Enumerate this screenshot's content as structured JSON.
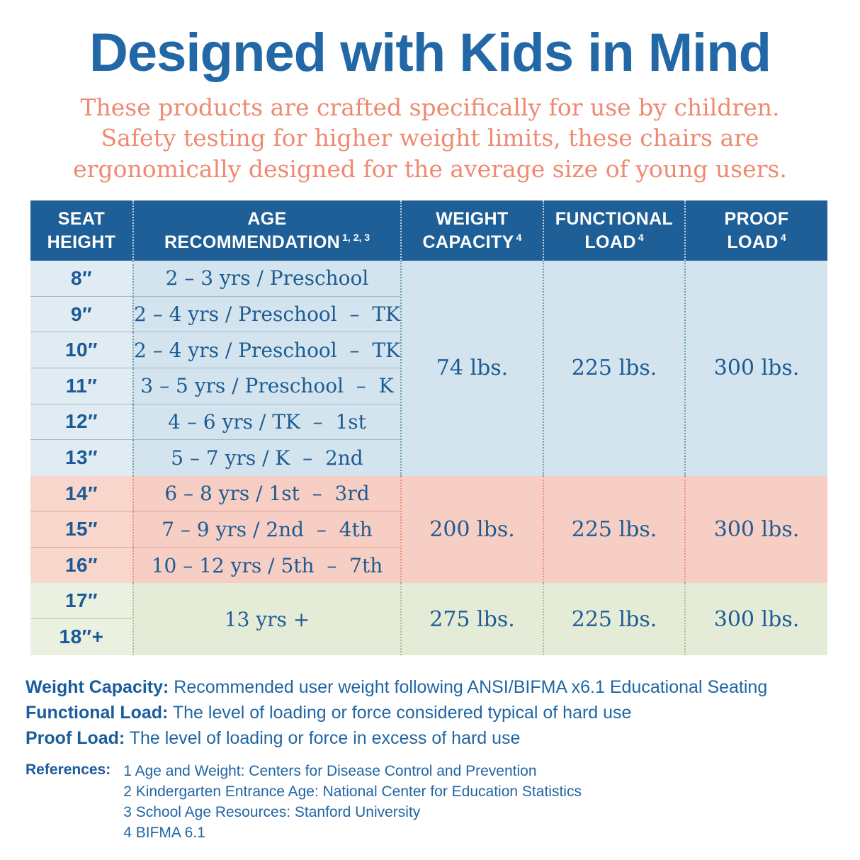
{
  "title": "Designed with Kids in Mind",
  "subtitle": {
    "line1": "These products are crafted specifically for use by children.",
    "line2": "Safety testing for higher weight limits, these chairs are",
    "line3": "ergonomically designed for the average size of young users."
  },
  "colors": {
    "title_blue": "#2268a6",
    "coral": "#ef8a72",
    "header_bg": "#1f5f97",
    "body_text_blue": "#1d5c92",
    "section_blue": "#d3e4ee",
    "section_pink": "#f7cec4",
    "section_green": "#e4ecd8"
  },
  "table": {
    "headers": [
      {
        "line1": "SEAT",
        "line2": "HEIGHT",
        "sup": ""
      },
      {
        "line1": "AGE",
        "line2": "RECOMMENDATION",
        "sup": "1, 2, 3"
      },
      {
        "line1": "WEIGHT",
        "line2": "CAPACITY",
        "sup": "4"
      },
      {
        "line1": "FUNCTIONAL",
        "line2": "LOAD",
        "sup": "4"
      },
      {
        "line1": "PROOF",
        "line2": "LOAD",
        "sup": "4"
      }
    ],
    "sections": [
      {
        "name": "blue",
        "rows": [
          {
            "height": "8″",
            "age": "2 – 3 yrs / Preschool"
          },
          {
            "height": "9″",
            "age": "2 – 4 yrs / Preschool  –  TK"
          },
          {
            "height": "10″",
            "age": "2 – 4 yrs / Preschool  –  TK"
          },
          {
            "height": "11″",
            "age": "3 – 5 yrs / Preschool  –  K"
          },
          {
            "height": "12″",
            "age": "4 – 6 yrs / TK  –  1st"
          },
          {
            "height": "13″",
            "age": "5 – 7 yrs / K  –  2nd"
          }
        ],
        "weight_capacity": "74 lbs.",
        "functional_load": "225 lbs.",
        "proof_load": "300 lbs."
      },
      {
        "name": "pink",
        "rows": [
          {
            "height": "14″",
            "age": "6 – 8 yrs / 1st  –  3rd"
          },
          {
            "height": "15″",
            "age": "7 – 9 yrs / 2nd  –  4th"
          },
          {
            "height": "16″",
            "age": "10 – 12 yrs / 5th  –  7th"
          }
        ],
        "weight_capacity": "200 lbs.",
        "functional_load": "225 lbs.",
        "proof_load": "300 lbs."
      },
      {
        "name": "green",
        "rows": [
          {
            "height": "17″"
          },
          {
            "height": "18″+"
          }
        ],
        "age": "13 yrs +",
        "weight_capacity": "275 lbs.",
        "functional_load": "225 lbs.",
        "proof_load": "300 lbs."
      }
    ]
  },
  "definitions": [
    {
      "term": "Weight Capacity:",
      "text": " Recommended user weight following ANSI/BIFMA x6.1 Educational Seating"
    },
    {
      "term": "Functional Load:",
      "text": " The level of loading or force considered typical of hard use"
    },
    {
      "term": "Proof Load:",
      "text": " The level of loading or force in excess of hard use"
    }
  ],
  "references": {
    "label": "References:",
    "items": [
      "1 Age and Weight: Centers for Disease Control and Prevention",
      "2 Kindergarten Entrance Age: National Center for Education Statistics",
      "3 School Age Resources: Stanford University",
      "4 BIFMA 6.1"
    ]
  }
}
